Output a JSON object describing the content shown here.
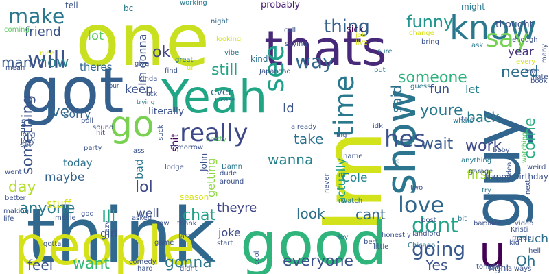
{
  "words": [
    {
      "text": "think",
      "color": "#31688e",
      "vertical": false
    },
    {
      "text": "Im",
      "color": "#d2e21b",
      "vertical": true
    },
    {
      "text": "one",
      "color": "#c8e020",
      "vertical": false
    },
    {
      "text": "good",
      "color": "#2fb47c",
      "vertical": false
    },
    {
      "text": "people",
      "color": "#d5e21a",
      "vertical": false
    },
    {
      "text": "got",
      "color": "#355f8d",
      "vertical": false
    },
    {
      "text": "guy",
      "color": "#32658e",
      "vertical": true
    },
    {
      "text": "thats",
      "color": "#482878",
      "vertical": false
    },
    {
      "text": "Yeah",
      "color": "#21a685",
      "vertical": false
    },
    {
      "text": "show",
      "color": "#2b758e",
      "vertical": true
    },
    {
      "text": "know",
      "color": "#29788e",
      "vertical": false
    },
    {
      "text": "u",
      "color": "#440154",
      "vertical": false
    },
    {
      "text": "go",
      "color": "#7ad151",
      "vertical": false
    },
    {
      "text": "really",
      "color": "#3e4989",
      "vertical": false
    },
    {
      "text": "make",
      "color": "#2a788e",
      "vertical": false
    },
    {
      "text": "will",
      "color": "#3b528b",
      "vertical": false
    },
    {
      "text": "see",
      "color": "#1fa088",
      "vertical": true
    },
    {
      "text": "say",
      "color": "#75d054",
      "vertical": false
    },
    {
      "text": "thing",
      "color": "#35608d",
      "vertical": false
    },
    {
      "text": "time",
      "color": "#2a788e",
      "vertical": true
    },
    {
      "text": "hes",
      "color": "#3b528b",
      "vertical": false
    },
    {
      "text": "love",
      "color": "#31688e",
      "vertical": false
    },
    {
      "text": "dont",
      "color": "#20a386",
      "vertical": false
    },
    {
      "text": "going",
      "color": "#38598c",
      "vertical": false
    },
    {
      "text": "now",
      "color": "#287d8e",
      "vertical": false
    },
    {
      "text": "way",
      "color": "#31688e",
      "vertical": false
    },
    {
      "text": "funny",
      "color": "#1f968b",
      "vertical": false
    },
    {
      "text": "ok",
      "color": "#414487",
      "vertical": false
    },
    {
      "text": "still",
      "color": "#20a386",
      "vertical": false
    },
    {
      "text": "someone",
      "color": "#2db27d",
      "vertical": false
    },
    {
      "text": "need",
      "color": "#2e6e8e",
      "vertical": false
    },
    {
      "text": "year",
      "color": "#46337e",
      "vertical": false
    },
    {
      "text": "fun",
      "color": "#3a548c",
      "vertical": false
    },
    {
      "text": "let",
      "color": "#277f8e",
      "vertical": false
    },
    {
      "text": "youre",
      "color": "#2a788e",
      "vertical": false
    },
    {
      "text": "back",
      "color": "#287d8e",
      "vertical": false
    },
    {
      "text": "said",
      "color": "#2d708e",
      "vertical": true
    },
    {
      "text": "come",
      "color": "#26ad81",
      "vertical": true
    },
    {
      "text": "wait",
      "color": "#38598c",
      "vertical": false
    },
    {
      "text": "work",
      "color": "#3e4a89",
      "vertical": false
    },
    {
      "text": "take",
      "color": "#2c728e",
      "vertical": false
    },
    {
      "text": "Ive",
      "color": "#31688e",
      "vertical": false
    },
    {
      "text": "sorry",
      "color": "#31688e",
      "vertical": false
    },
    {
      "text": "something",
      "color": "#3b528b",
      "vertical": true
    },
    {
      "text": "day",
      "color": "#b5de2b",
      "vertical": false
    },
    {
      "text": "maybe",
      "color": "#33638d",
      "vertical": false
    },
    {
      "text": "lol",
      "color": "#3e4a89",
      "vertical": false
    },
    {
      "text": "bad",
      "color": "#2a788e",
      "vertical": true
    },
    {
      "text": "anyone",
      "color": "#2a788e",
      "vertical": false
    },
    {
      "text": "Ill",
      "color": "#22a884",
      "vertical": false
    },
    {
      "text": "chat",
      "color": "#1fa088",
      "vertical": false
    },
    {
      "text": "well",
      "color": "#3b528b",
      "vertical": false
    },
    {
      "text": "look",
      "color": "#2d708e",
      "vertical": false
    },
    {
      "text": "cant",
      "color": "#31688e",
      "vertical": false
    },
    {
      "text": "first",
      "color": "#a8db34",
      "vertical": false
    },
    {
      "text": "much",
      "color": "#2e6e8e",
      "vertical": false
    },
    {
      "text": "Oh",
      "color": "#2d708e",
      "vertical": false
    },
    {
      "text": "feel",
      "color": "#3b528b",
      "vertical": false
    },
    {
      "text": "want",
      "color": "#35b779",
      "vertical": false
    },
    {
      "text": "gonna",
      "color": "#2a788e",
      "vertical": false
    },
    {
      "text": "everyone",
      "color": "#3b528b",
      "vertical": false
    },
    {
      "text": "Yes",
      "color": "#3b528b",
      "vertical": false
    },
    {
      "text": "Cole",
      "color": "#26828e",
      "vertical": false
    },
    {
      "text": "theyre",
      "color": "#404688",
      "vertical": false
    },
    {
      "text": "wanna",
      "color": "#26828e",
      "vertical": false
    },
    {
      "text": "keep",
      "color": "#3b528b",
      "vertical": false
    },
    {
      "text": "friend",
      "color": "#3b528b",
      "vertical": false
    },
    {
      "text": "lot",
      "color": "#5ec962",
      "vertical": false
    },
    {
      "text": "man",
      "color": "#38598c",
      "vertical": false
    },
    {
      "text": "theres",
      "color": "#31688e",
      "vertical": false
    },
    {
      "text": "Im gonna",
      "color": "#3b528b",
      "vertical": true
    },
    {
      "text": "today",
      "color": "#2c728e",
      "vertical": false
    },
    {
      "text": "stuff",
      "color": "#d8e219",
      "vertical": false
    },
    {
      "text": "girl",
      "color": "#3a548c",
      "vertical": false
    },
    {
      "text": "getting",
      "color": "#8fd744",
      "vertical": true
    },
    {
      "text": "joke",
      "color": "#3e4a89",
      "vertical": false
    },
    {
      "text": "actually",
      "color": "#1fa088",
      "vertical": true
    },
    {
      "text": "Id",
      "color": "#3b528b",
      "vertical": false
    },
    {
      "text": "literally",
      "color": "#3b528b",
      "vertical": false
    },
    {
      "text": "shit",
      "color": "#440154",
      "vertical": true
    },
    {
      "text": "even",
      "color": "#31688e",
      "vertical": false
    },
    {
      "text": "kind",
      "color": "#2d708e",
      "vertical": false
    },
    {
      "text": "probably",
      "color": "#481f70",
      "vertical": false
    },
    {
      "text": "tell",
      "color": "#3b528b",
      "vertical": false
    },
    {
      "text": "bc",
      "color": "#2a788e",
      "vertical": false
    },
    {
      "text": "working",
      "color": "#2a788e",
      "vertical": false
    },
    {
      "text": "might",
      "color": "#2a788e",
      "vertical": false
    },
    {
      "text": "thought",
      "color": "#3b528b",
      "vertical": false
    },
    {
      "text": "night",
      "color": "#31688e",
      "vertical": false
    },
    {
      "text": "looking",
      "color": "#d8e219",
      "vertical": false
    },
    {
      "text": "vibe",
      "color": "#2a788e",
      "vertical": false
    },
    {
      "text": "call",
      "color": "#3b528b",
      "vertical": false
    },
    {
      "text": "sick",
      "color": "#440154",
      "vertical": false
    },
    {
      "text": "job",
      "color": "#d8e219",
      "vertical": false
    },
    {
      "text": "live",
      "color": "#d8e219",
      "vertical": false
    },
    {
      "text": "change",
      "color": "#d8e219",
      "vertical": false
    },
    {
      "text": "ask",
      "color": "#2a788e",
      "vertical": false
    },
    {
      "text": "enough",
      "color": "#3b528b",
      "vertical": false
    },
    {
      "text": "every",
      "color": "#d8e219",
      "vertical": false
    },
    {
      "text": "many",
      "color": "#3b528b",
      "vertical": true
    },
    {
      "text": "bring",
      "color": "#3b528b",
      "vertical": false
    },
    {
      "text": "hate",
      "color": "#3b528b",
      "vertical": false
    },
    {
      "text": "lmao",
      "color": "#3b528b",
      "vertical": false
    },
    {
      "text": "book",
      "color": "#3b528b",
      "vertical": false
    },
    {
      "text": "sure",
      "color": "#2a788e",
      "vertical": false
    },
    {
      "text": "put",
      "color": "#2a788e",
      "vertical": false
    },
    {
      "text": "guess",
      "color": "#2a788e",
      "vertical": false
    },
    {
      "text": "told",
      "color": "#3b528b",
      "vertical": false
    },
    {
      "text": "coming",
      "color": "#5ec962",
      "vertical": false
    },
    {
      "text": "nice",
      "color": "#d8e219",
      "vertical": false
    },
    {
      "text": "mean",
      "color": "#3b528b",
      "vertical": false
    },
    {
      "text": "great",
      "color": "#2a788e",
      "vertical": false
    },
    {
      "text": "give",
      "color": "#3b528b",
      "vertical": false
    },
    {
      "text": "ur",
      "color": "#d8e219",
      "vertical": false
    },
    {
      "text": "Japan",
      "color": "#3b528b",
      "vertical": false
    },
    {
      "text": "dad",
      "color": "#3b528b",
      "vertical": false
    },
    {
      "text": "saying",
      "color": "#3b528b",
      "vertical": false
    },
    {
      "text": "find",
      "color": "#3b528b",
      "vertical": false
    },
    {
      "text": "kinda",
      "color": "#3b528b",
      "vertical": false
    },
    {
      "text": "hour",
      "color": "#3b528b",
      "vertical": false
    },
    {
      "text": "fuck",
      "color": "#3b528b",
      "vertical": false
    },
    {
      "text": "trying",
      "color": "#2a788e",
      "vertical": false
    },
    {
      "text": "please",
      "color": "#2a788e",
      "vertical": false
    },
    {
      "text": "idk",
      "color": "#3b528b",
      "vertical": false
    },
    {
      "text": "whats",
      "color": "#2a788e",
      "vertical": false
    },
    {
      "text": "already",
      "color": "#3b528b",
      "vertical": false
    },
    {
      "text": "big",
      "color": "#3b528b",
      "vertical": false
    },
    {
      "text": "Happy birthday",
      "color": "#3b528b",
      "vertical": false
    },
    {
      "text": "watching",
      "color": "#5ec962",
      "vertical": true
    },
    {
      "text": "weird",
      "color": "#3b528b",
      "vertical": false
    },
    {
      "text": "baby",
      "color": "#3b528b",
      "vertical": false
    },
    {
      "text": "garage",
      "color": "#3b528b",
      "vertical": false
    },
    {
      "text": "idea",
      "color": "#3b528b",
      "vertical": true
    },
    {
      "text": "next",
      "color": "#3b528b",
      "vertical": true
    },
    {
      "text": "Ian",
      "color": "#3b528b",
      "vertical": true
    },
    {
      "text": "long",
      "color": "#3b528b",
      "vertical": false
    },
    {
      "text": "poll",
      "color": "#3b528b",
      "vertical": false
    },
    {
      "text": "sound",
      "color": "#3b528b",
      "vertical": false
    },
    {
      "text": "Joey",
      "color": "#3b528b",
      "vertical": false
    },
    {
      "text": "set",
      "color": "#3b528b",
      "vertical": false
    },
    {
      "text": "hit",
      "color": "#3b528b",
      "vertical": false
    },
    {
      "text": "party",
      "color": "#3b528b",
      "vertical": false
    },
    {
      "text": "suck",
      "color": "#3b528b",
      "vertical": true
    },
    {
      "text": "pretty",
      "color": "#5ec962",
      "vertical": false
    },
    {
      "text": "tomorrow",
      "color": "#3b528b",
      "vertical": false
    },
    {
      "text": "ass",
      "color": "#3b528b",
      "vertical": false
    },
    {
      "text": "lodge",
      "color": "#3b528b",
      "vertical": false
    },
    {
      "text": "John",
      "color": "#3b528b",
      "vertical": true
    },
    {
      "text": "Damn",
      "color": "#2a788e",
      "vertical": false
    },
    {
      "text": "dude",
      "color": "#3b528b",
      "vertical": false
    },
    {
      "text": "around",
      "color": "#3b528b",
      "vertical": false
    },
    {
      "text": "name",
      "color": "#3b528b",
      "vertical": false
    },
    {
      "text": "watch",
      "color": "#2a788e",
      "vertical": false
    },
    {
      "text": "real",
      "color": "#2a788e",
      "vertical": true
    },
    {
      "text": "anything",
      "color": "#2a788e",
      "vertical": false
    },
    {
      "text": "never",
      "color": "#3b528b",
      "vertical": true
    },
    {
      "text": "try",
      "color": "#2a788e",
      "vertical": false
    },
    {
      "text": "two",
      "color": "#3b528b",
      "vertical": false
    },
    {
      "text": "went",
      "color": "#3b528b",
      "vertical": false
    },
    {
      "text": "better",
      "color": "#3b528b",
      "vertical": false
    },
    {
      "text": "making",
      "color": "#3b528b",
      "vertical": false
    },
    {
      "text": "life",
      "color": "#3b528b",
      "vertical": false
    },
    {
      "text": "movie",
      "color": "#3b528b",
      "vertical": false
    },
    {
      "text": "god",
      "color": "#3b528b",
      "vertical": false
    },
    {
      "text": "asked",
      "color": "#3b528b",
      "vertical": false
    },
    {
      "text": "crazy",
      "color": "#3b528b",
      "vertical": true
    },
    {
      "text": "season",
      "color": "#d8e219",
      "vertical": false
    },
    {
      "text": "saw",
      "color": "#3b528b",
      "vertical": false
    },
    {
      "text": "thank",
      "color": "#3b528b",
      "vertical": false
    },
    {
      "text": "last",
      "color": "#3b528b",
      "vertical": false
    },
    {
      "text": "game",
      "color": "#3b528b",
      "vertical": false
    },
    {
      "text": "gotta",
      "color": "#3b528b",
      "vertical": false
    },
    {
      "text": "comedy",
      "color": "#3b528b",
      "vertical": false
    },
    {
      "text": "hard",
      "color": "#3b528b",
      "vertical": false
    },
    {
      "text": "didnt",
      "color": "#3b528b",
      "vertical": false
    },
    {
      "text": "start",
      "color": "#3b528b",
      "vertical": false
    },
    {
      "text": "cool",
      "color": "#3b528b",
      "vertical": true
    },
    {
      "text": "Hey",
      "color": "#2a788e",
      "vertical": false
    },
    {
      "text": "best",
      "color": "#3b528b",
      "vertical": false
    },
    {
      "text": "landlord",
      "color": "#3b528b",
      "vertical": false
    },
    {
      "text": "Chicago",
      "color": "#2a788e",
      "vertical": false
    },
    {
      "text": "honestly",
      "color": "#3b528b",
      "vertical": false
    },
    {
      "text": "post",
      "color": "#3b528b",
      "vertical": false
    },
    {
      "text": "little",
      "color": "#3b528b",
      "vertical": false
    },
    {
      "text": "tonight",
      "color": "#3b528b",
      "vertical": false
    },
    {
      "text": "right",
      "color": "#3b528b",
      "vertical": false
    },
    {
      "text": "always",
      "color": "#3b528b",
      "vertical": false
    },
    {
      "text": "bit",
      "color": "#2a788e",
      "vertical": false
    },
    {
      "text": "bar",
      "color": "#3b528b",
      "vertical": false
    },
    {
      "text": "place",
      "color": "#3b528b",
      "vertical": false
    },
    {
      "text": "video",
      "color": "#3b528b",
      "vertical": false
    },
    {
      "text": "Kristi",
      "color": "#3b528b",
      "vertical": false
    },
    {
      "text": "made",
      "color": "#3b528b",
      "vertical": false
    },
    {
      "text": "kid",
      "color": "#3b528b",
      "vertical": false
    },
    {
      "text": "hell",
      "color": "#3b528b",
      "vertical": false
    },
    {
      "text": "shes",
      "color": "#3b528b",
      "vertical": false
    }
  ]
}
